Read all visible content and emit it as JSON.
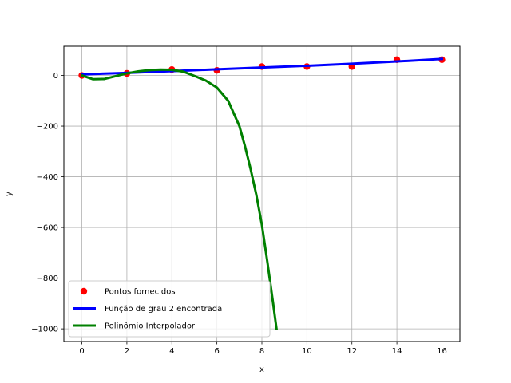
{
  "chart_data": {
    "type": "scatter",
    "title": "",
    "xlabel": "x",
    "ylabel": "y",
    "xlim": [
      -0.8,
      16.8
    ],
    "ylim": [
      -1050,
      115
    ],
    "grid": true,
    "legend_placement": "lower-left",
    "x_ticks": [
      0,
      2,
      4,
      6,
      8,
      10,
      12,
      14,
      16
    ],
    "x_tick_labels": [
      "0",
      "2",
      "4",
      "6",
      "8",
      "10",
      "12",
      "14",
      "16"
    ],
    "y_ticks": [
      0,
      -200,
      -400,
      -600,
      -800,
      -1000
    ],
    "y_tick_labels": [
      "0",
      "−200",
      "−400",
      "−600",
      "−800",
      "−1000"
    ],
    "series": [
      {
        "name": "Pontos fornecidos",
        "kind": "scatter",
        "color": "#ff0000",
        "x": [
          0,
          2,
          4,
          6,
          8,
          10,
          12,
          14,
          16
        ],
        "y": [
          0,
          8,
          23,
          20,
          35,
          35,
          35,
          62,
          62
        ]
      },
      {
        "name": "Função de grau 2 encontrada",
        "kind": "line",
        "color": "#0000ff",
        "x": [
          0,
          2,
          4,
          6,
          8,
          10,
          12,
          14,
          16
        ],
        "y": [
          4,
          10,
          17,
          24,
          31,
          38,
          46,
          55,
          65
        ]
      },
      {
        "name": "Polinômio Interpolador",
        "kind": "line",
        "color": "#008000",
        "x": [
          0,
          0.5,
          1,
          1.5,
          2,
          2.5,
          3,
          3.5,
          4,
          4.5,
          5,
          5.5,
          6,
          6.5,
          7,
          7.25,
          7.5,
          7.75,
          8,
          8.25,
          8.5,
          8.65
        ],
        "y": [
          0,
          -15,
          -14,
          -3,
          8,
          16,
          21,
          23,
          22,
          15,
          -2,
          -20,
          -48,
          -100,
          -200,
          -280,
          -370,
          -470,
          -590,
          -740,
          -900,
          -1000
        ]
      }
    ]
  }
}
